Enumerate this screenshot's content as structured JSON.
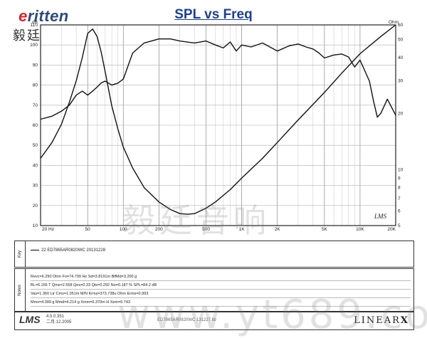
{
  "logo": {
    "brand_first": "e",
    "brand_rest": "ritten",
    "chinese": "毅廷音响"
  },
  "watermark": {
    "chinese": "毅廷音响",
    "url": "www.yt689.com"
  },
  "chart_data": {
    "type": "line",
    "title": "SPL vs Freq",
    "x_scale": "log",
    "xlim": [
      20,
      20000
    ],
    "x_ticks": [
      {
        "value": 20,
        "label": "20 Hz"
      },
      {
        "value": 50,
        "label": "50"
      },
      {
        "value": 100,
        "label": "100"
      },
      {
        "value": 200,
        "label": "200"
      },
      {
        "value": 500,
        "label": "500"
      },
      {
        "value": 1000,
        "label": "1K"
      },
      {
        "value": 2000,
        "label": "2K"
      },
      {
        "value": 5000,
        "label": "5K"
      },
      {
        "value": 10000,
        "label": "10K"
      },
      {
        "value": 20000,
        "label": "20K"
      }
    ],
    "y_left": {
      "label": "dB",
      "lim": [
        10,
        110
      ],
      "ticks": [
        10,
        20,
        30,
        40,
        50,
        60,
        70,
        80,
        90,
        100,
        110
      ]
    },
    "y_right": {
      "label": "Ohm",
      "scale": "log",
      "lim": [
        5,
        60
      ],
      "ticks": [
        5,
        6,
        7,
        8,
        9,
        10,
        20,
        30,
        40,
        50,
        60
      ]
    },
    "grid": true,
    "series": [
      {
        "axis": "left",
        "x": [
          20,
          25,
          30,
          35,
          40,
          45,
          50,
          55,
          60,
          65,
          70,
          75,
          80,
          90,
          100,
          120,
          150,
          200,
          250,
          300,
          400,
          500,
          600,
          700,
          800,
          900,
          1000,
          1200,
          1500,
          2000,
          2500,
          3000,
          3500,
          4000,
          4500,
          5000,
          6000,
          7000,
          8000,
          9000,
          10000,
          11000,
          12000,
          13000,
          14000,
          15000,
          17000,
          20000
        ],
        "y": [
          63,
          64.5,
          67,
          70,
          75,
          77,
          75,
          77,
          79,
          81,
          82,
          81,
          80,
          81,
          83,
          96,
          101,
          103,
          103,
          102,
          101,
          102,
          100,
          98.5,
          101.5,
          97,
          100,
          99,
          101,
          97,
          99.5,
          100.5,
          99,
          98,
          96,
          93.5,
          95,
          95.5,
          94,
          89,
          92.5,
          87,
          82,
          72,
          64,
          66,
          73,
          65
        ]
      },
      {
        "axis": "right",
        "x": [
          20,
          25,
          30,
          35,
          40,
          45,
          50,
          55,
          60,
          65,
          70,
          80,
          90,
          100,
          120,
          150,
          200,
          250,
          300,
          350,
          400,
          500,
          600,
          800,
          1000,
          1500,
          2000,
          3000,
          5000,
          7000,
          10000,
          15000,
          20000
        ],
        "y": [
          11.5,
          14,
          17.5,
          23,
          30,
          40,
          54,
          57,
          52,
          43,
          34,
          22,
          16.5,
          13.2,
          10.2,
          8.0,
          6.7,
          6.1,
          5.8,
          5.75,
          5.8,
          6.2,
          6.7,
          7.8,
          9.0,
          11.5,
          14.0,
          18.5,
          26,
          33,
          42,
          52,
          60
        ]
      }
    ]
  },
  "legend": {
    "side_label": "Key",
    "entry": "22 ED7865AR0820WC 20131228"
  },
  "notes": {
    "side_label": "Notes",
    "rows": [
      "Revc=6.290 Ohm Fo=74.799 Hz Sd=3.8191m BlfMd=3.200 g",
      "BL=6.165 T  Qms=2.558 Qes=0.33 Qts=0.292 No=0.187 % SPL=84.2 dB",
      "Vas=1.360 Ltr Cms=1.051m M/N Krms=373.738u Ohm Erms=0.993",
      "Mms=4.399 g Mmd=4.214 g Xmm=6.370m H Xem=6.743"
    ]
  },
  "footer": {
    "logo": "LMS",
    "version": "4.5.0.351",
    "date": "二月.12.2005",
    "middle": "ED7865AR0820WC 131227.lib",
    "brand": "LINEAR",
    "brand_x": "X"
  }
}
